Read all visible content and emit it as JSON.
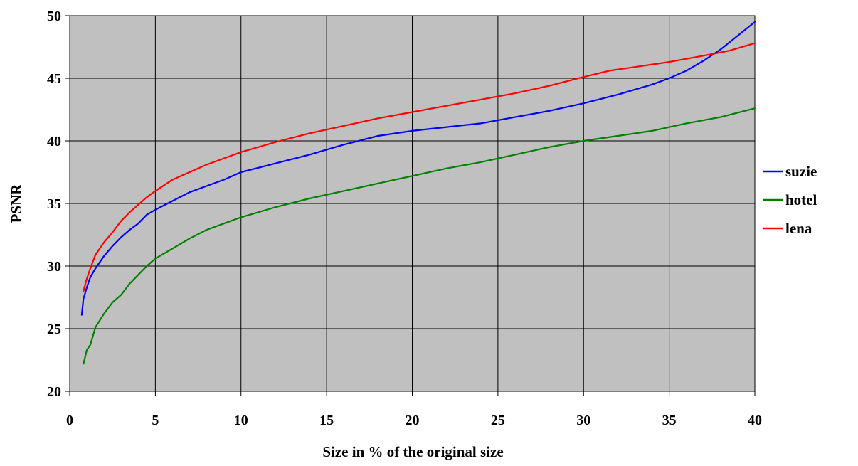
{
  "chart_data": {
    "type": "line",
    "title": "",
    "xlabel": "Size in % of the original size",
    "ylabel": "PSNR",
    "xlim": [
      0,
      40
    ],
    "ylim": [
      20,
      50
    ],
    "xticks": [
      0,
      5,
      10,
      15,
      20,
      25,
      30,
      35,
      40
    ],
    "yticks": [
      20,
      25,
      30,
      35,
      40,
      45,
      50
    ],
    "grid": true,
    "plot_background": "#c0c0c0",
    "legend_position": "right",
    "series": [
      {
        "name": "suzie",
        "color": "#0000ff",
        "x": [
          0.7,
          0.8,
          1.0,
          1.2,
          1.5,
          2.0,
          2.5,
          3.0,
          3.5,
          4.0,
          4.5,
          5.0,
          6.0,
          7.0,
          8.0,
          9.0,
          10.0,
          12.0,
          14.0,
          16.0,
          18.0,
          20.0,
          22.0,
          24.0,
          26.0,
          28.0,
          30.0,
          32.0,
          34.0,
          35.0,
          36.0,
          37.0,
          38.0,
          39.0,
          40.0
        ],
        "y": [
          26.1,
          27.4,
          28.3,
          29.1,
          29.8,
          30.8,
          31.6,
          32.3,
          32.9,
          33.4,
          34.1,
          34.5,
          35.2,
          35.9,
          36.4,
          36.9,
          37.5,
          38.2,
          38.9,
          39.7,
          40.4,
          40.8,
          41.1,
          41.4,
          41.9,
          42.4,
          43.0,
          43.7,
          44.5,
          45.0,
          45.6,
          46.4,
          47.3,
          48.4,
          49.5
        ]
      },
      {
        "name": "hotel",
        "color": "#008000",
        "x": [
          0.8,
          1.0,
          1.2,
          1.5,
          2.0,
          2.5,
          3.0,
          3.5,
          4.0,
          4.5,
          5.0,
          6.0,
          7.0,
          8.0,
          9.0,
          10.0,
          12.0,
          14.0,
          16.0,
          18.0,
          20.0,
          22.0,
          24.0,
          26.0,
          28.0,
          30.0,
          32.0,
          34.0,
          36.0,
          38.0,
          40.0
        ],
        "y": [
          22.2,
          23.3,
          23.7,
          25.1,
          26.2,
          27.1,
          27.7,
          28.6,
          29.3,
          30.0,
          30.6,
          31.4,
          32.2,
          32.9,
          33.4,
          33.9,
          34.7,
          35.4,
          36.0,
          36.6,
          37.2,
          37.8,
          38.3,
          38.9,
          39.5,
          40.0,
          40.4,
          40.8,
          41.4,
          41.9,
          42.6
        ]
      },
      {
        "name": "lena",
        "color": "#ff0000",
        "x": [
          0.8,
          1.0,
          1.2,
          1.5,
          2.0,
          2.5,
          3.0,
          3.5,
          4.0,
          4.5,
          5.0,
          6.0,
          7.0,
          8.0,
          9.0,
          10.0,
          12.0,
          14.0,
          16.0,
          18.0,
          20.0,
          22.0,
          24.0,
          26.0,
          28.0,
          30.0,
          31.5,
          33.0,
          35.0,
          37.0,
          38.5,
          40.0
        ],
        "y": [
          28.0,
          29.0,
          29.8,
          30.9,
          31.9,
          32.7,
          33.6,
          34.3,
          34.9,
          35.5,
          36.0,
          36.9,
          37.5,
          38.1,
          38.6,
          39.1,
          39.9,
          40.6,
          41.2,
          41.8,
          42.3,
          42.8,
          43.3,
          43.8,
          44.4,
          45.1,
          45.6,
          45.9,
          46.3,
          46.8,
          47.2,
          47.8
        ]
      }
    ]
  }
}
